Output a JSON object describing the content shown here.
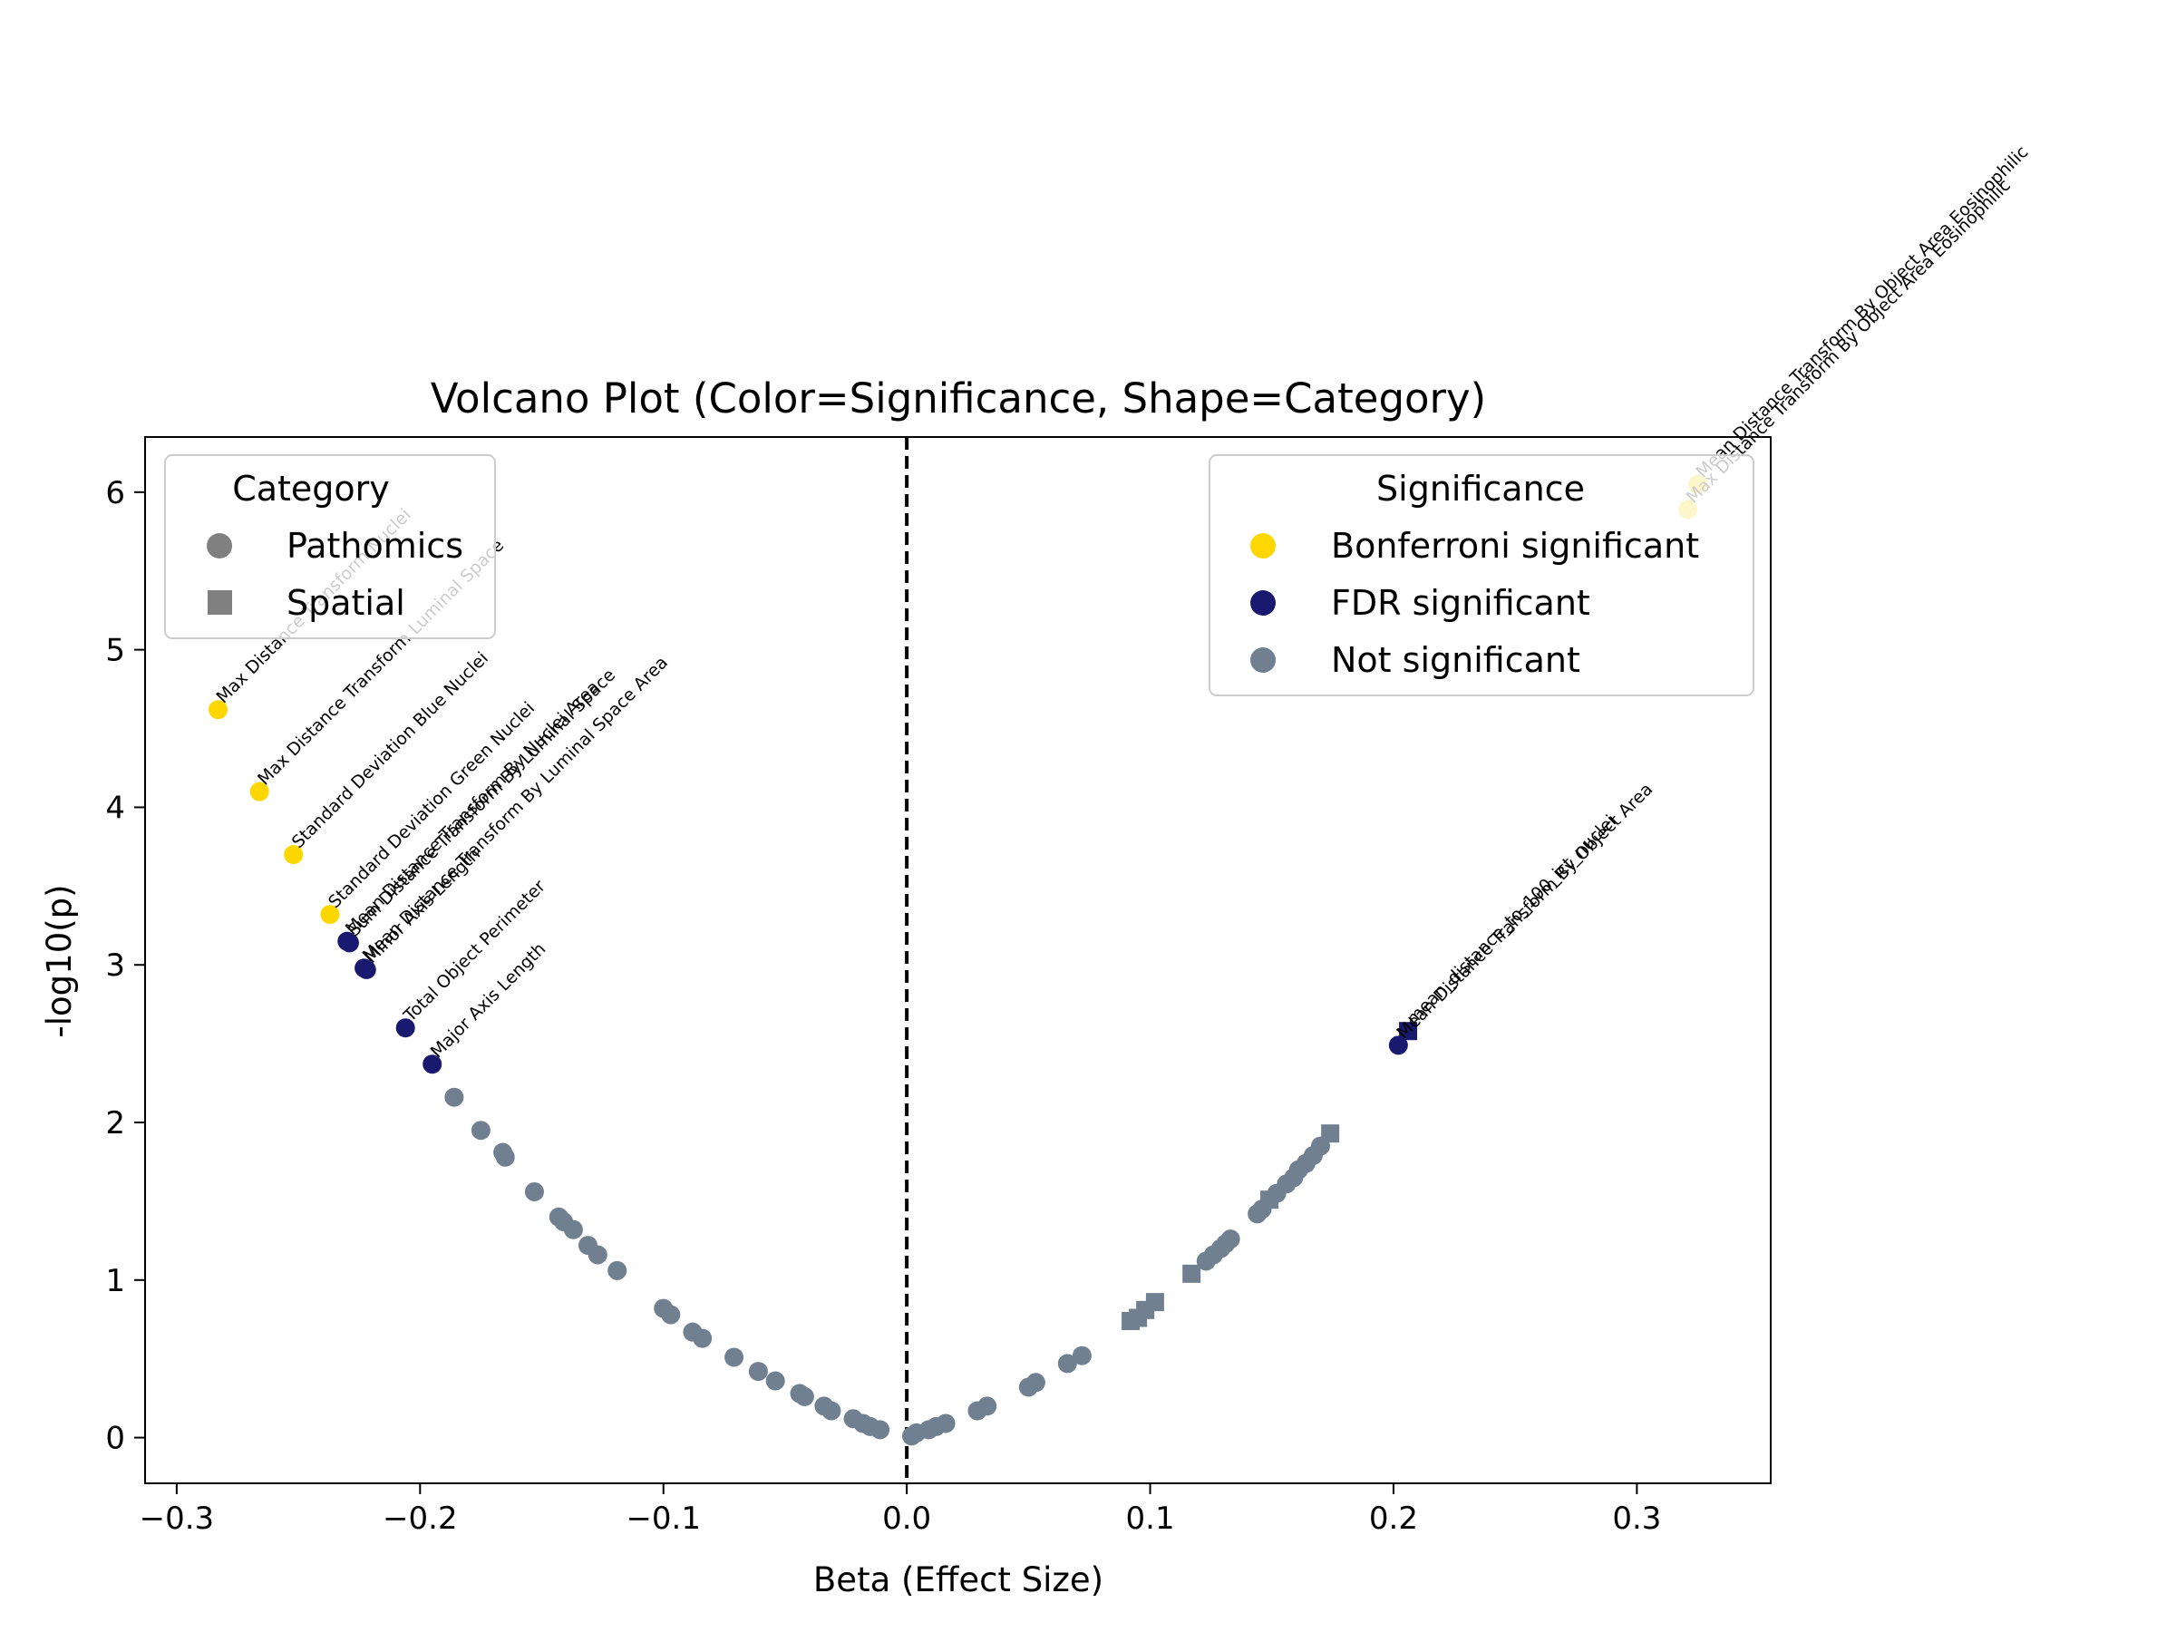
{
  "chart_data": {
    "type": "scatter",
    "title": "Volcano Plot (Color=Significance, Shape=Category)",
    "xlabel": "Beta (Effect Size)",
    "ylabel": "-log10(p)",
    "xlim": [
      -0.313,
      0.355
    ],
    "ylim": [
      -0.29,
      6.35
    ],
    "xticks": [
      -0.3,
      -0.2,
      -0.1,
      0.0,
      0.1,
      0.2,
      0.3
    ],
    "xtick_labels": [
      "−0.3",
      "−0.2",
      "−0.1",
      "0.0",
      "0.1",
      "0.2",
      "0.3"
    ],
    "yticks": [
      0,
      1,
      2,
      3,
      4,
      5,
      6
    ],
    "ytick_labels": [
      "0",
      "1",
      "2",
      "3",
      "4",
      "5",
      "6"
    ],
    "reference_line": {
      "x": 0,
      "style": "dashed",
      "color": "#000000"
    },
    "grid": false,
    "colors": {
      "Bonferroni significant": "#FFD700",
      "FDR significant": "#191970",
      "Not significant": "#708090",
      "category_marker": "#808080"
    },
    "legend_category": {
      "title": "Category",
      "placement": "upper-left",
      "entries": [
        {
          "label": "Pathomics",
          "marker": "circle"
        },
        {
          "label": "Spatial",
          "marker": "square"
        }
      ]
    },
    "legend_significance": {
      "title": "Significance",
      "placement": "upper-right",
      "entries": [
        {
          "label": "Bonferroni significant",
          "color": "#FFD700"
        },
        {
          "label": "FDR significant",
          "color": "#191970"
        },
        {
          "label": "Not significant",
          "color": "#708090"
        }
      ]
    },
    "points": [
      {
        "x": -0.283,
        "y": 4.62,
        "sig": "Bonferroni significant",
        "shape": "circle",
        "label": "Max Distance Transform Nuclei"
      },
      {
        "x": -0.266,
        "y": 4.1,
        "sig": "Bonferroni significant",
        "shape": "circle",
        "label": "Max Distance Transform Luminal Space"
      },
      {
        "x": -0.252,
        "y": 3.7,
        "sig": "Bonferroni significant",
        "shape": "circle",
        "label": "Standard Deviation Blue Nuclei"
      },
      {
        "x": -0.237,
        "y": 3.32,
        "sig": "Bonferroni significant",
        "shape": "circle",
        "label": "Standard Deviation Green Nuclei"
      },
      {
        "x": -0.23,
        "y": 3.15,
        "sig": "FDR significant",
        "shape": "circle",
        "label": "Mean Distance Transform By Nuclei Area"
      },
      {
        "x": -0.229,
        "y": 3.14,
        "sig": "FDR significant",
        "shape": "circle",
        "label": "Sum Distance Transform By Luminal Space"
      },
      {
        "x": -0.223,
        "y": 2.98,
        "sig": "FDR significant",
        "shape": "circle",
        "label": "Mean Distance Transform By Luminal Space Area"
      },
      {
        "x": -0.222,
        "y": 2.97,
        "sig": "FDR significant",
        "shape": "circle",
        "label": "Minor Axis Length"
      },
      {
        "x": -0.206,
        "y": 2.6,
        "sig": "FDR significant",
        "shape": "circle",
        "label": "Total Object Perimeter"
      },
      {
        "x": -0.195,
        "y": 2.37,
        "sig": "FDR significant",
        "shape": "circle",
        "label": "Major Axis Length"
      },
      {
        "x": 0.206,
        "y": 2.58,
        "sig": "FDR significant",
        "shape": "square",
        "label": "mean_distance_to_100_ict_nuclei"
      },
      {
        "x": 0.202,
        "y": 2.49,
        "sig": "FDR significant",
        "shape": "circle",
        "label": "Mean Distance Transform By Object Area"
      },
      {
        "x": 0.325,
        "y": 6.05,
        "sig": "Bonferroni significant",
        "shape": "circle",
        "label": "Mean Distance Transform By Object Area Eosinophilic"
      },
      {
        "x": 0.321,
        "y": 5.89,
        "sig": "Bonferroni significant",
        "shape": "circle",
        "label": "Max Distance Transform By Object Area Eosinophilic"
      },
      {
        "x": -0.186,
        "y": 2.16,
        "sig": "Not significant",
        "shape": "circle"
      },
      {
        "x": -0.175,
        "y": 1.95,
        "sig": "Not significant",
        "shape": "circle"
      },
      {
        "x": -0.166,
        "y": 1.81,
        "sig": "Not significant",
        "shape": "circle"
      },
      {
        "x": -0.165,
        "y": 1.78,
        "sig": "Not significant",
        "shape": "circle"
      },
      {
        "x": -0.153,
        "y": 1.56,
        "sig": "Not significant",
        "shape": "circle"
      },
      {
        "x": -0.143,
        "y": 1.4,
        "sig": "Not significant",
        "shape": "circle"
      },
      {
        "x": -0.141,
        "y": 1.37,
        "sig": "Not significant",
        "shape": "circle"
      },
      {
        "x": -0.137,
        "y": 1.32,
        "sig": "Not significant",
        "shape": "circle"
      },
      {
        "x": -0.131,
        "y": 1.22,
        "sig": "Not significant",
        "shape": "circle"
      },
      {
        "x": -0.127,
        "y": 1.16,
        "sig": "Not significant",
        "shape": "circle"
      },
      {
        "x": -0.119,
        "y": 1.06,
        "sig": "Not significant",
        "shape": "circle"
      },
      {
        "x": -0.1,
        "y": 0.82,
        "sig": "Not significant",
        "shape": "circle"
      },
      {
        "x": -0.097,
        "y": 0.78,
        "sig": "Not significant",
        "shape": "circle"
      },
      {
        "x": -0.088,
        "y": 0.67,
        "sig": "Not significant",
        "shape": "circle"
      },
      {
        "x": -0.084,
        "y": 0.63,
        "sig": "Not significant",
        "shape": "circle"
      },
      {
        "x": -0.071,
        "y": 0.51,
        "sig": "Not significant",
        "shape": "circle"
      },
      {
        "x": -0.061,
        "y": 0.42,
        "sig": "Not significant",
        "shape": "circle"
      },
      {
        "x": -0.054,
        "y": 0.36,
        "sig": "Not significant",
        "shape": "circle"
      },
      {
        "x": -0.044,
        "y": 0.28,
        "sig": "Not significant",
        "shape": "circle"
      },
      {
        "x": -0.042,
        "y": 0.26,
        "sig": "Not significant",
        "shape": "circle"
      },
      {
        "x": -0.034,
        "y": 0.2,
        "sig": "Not significant",
        "shape": "circle"
      },
      {
        "x": -0.031,
        "y": 0.17,
        "sig": "Not significant",
        "shape": "circle"
      },
      {
        "x": -0.022,
        "y": 0.12,
        "sig": "Not significant",
        "shape": "circle"
      },
      {
        "x": -0.018,
        "y": 0.09,
        "sig": "Not significant",
        "shape": "circle"
      },
      {
        "x": -0.015,
        "y": 0.07,
        "sig": "Not significant",
        "shape": "circle"
      },
      {
        "x": -0.011,
        "y": 0.05,
        "sig": "Not significant",
        "shape": "circle"
      },
      {
        "x": 0.002,
        "y": 0.01,
        "sig": "Not significant",
        "shape": "circle"
      },
      {
        "x": 0.004,
        "y": 0.03,
        "sig": "Not significant",
        "shape": "circle"
      },
      {
        "x": 0.009,
        "y": 0.05,
        "sig": "Not significant",
        "shape": "circle"
      },
      {
        "x": 0.012,
        "y": 0.07,
        "sig": "Not significant",
        "shape": "circle"
      },
      {
        "x": 0.016,
        "y": 0.09,
        "sig": "Not significant",
        "shape": "circle"
      },
      {
        "x": 0.029,
        "y": 0.17,
        "sig": "Not significant",
        "shape": "circle"
      },
      {
        "x": 0.033,
        "y": 0.2,
        "sig": "Not significant",
        "shape": "circle"
      },
      {
        "x": 0.05,
        "y": 0.32,
        "sig": "Not significant",
        "shape": "circle"
      },
      {
        "x": 0.053,
        "y": 0.35,
        "sig": "Not significant",
        "shape": "circle"
      },
      {
        "x": 0.066,
        "y": 0.47,
        "sig": "Not significant",
        "shape": "circle"
      },
      {
        "x": 0.072,
        "y": 0.52,
        "sig": "Not significant",
        "shape": "circle"
      },
      {
        "x": 0.092,
        "y": 0.74,
        "sig": "Not significant",
        "shape": "square"
      },
      {
        "x": 0.095,
        "y": 0.76,
        "sig": "Not significant",
        "shape": "square"
      },
      {
        "x": 0.098,
        "y": 0.81,
        "sig": "Not significant",
        "shape": "square"
      },
      {
        "x": 0.102,
        "y": 0.86,
        "sig": "Not significant",
        "shape": "square"
      },
      {
        "x": 0.117,
        "y": 1.04,
        "sig": "Not significant",
        "shape": "square"
      },
      {
        "x": 0.123,
        "y": 1.12,
        "sig": "Not significant",
        "shape": "circle"
      },
      {
        "x": 0.126,
        "y": 1.16,
        "sig": "Not significant",
        "shape": "circle"
      },
      {
        "x": 0.129,
        "y": 1.2,
        "sig": "Not significant",
        "shape": "circle"
      },
      {
        "x": 0.131,
        "y": 1.23,
        "sig": "Not significant",
        "shape": "circle"
      },
      {
        "x": 0.133,
        "y": 1.26,
        "sig": "Not significant",
        "shape": "circle"
      },
      {
        "x": 0.144,
        "y": 1.42,
        "sig": "Not significant",
        "shape": "circle"
      },
      {
        "x": 0.146,
        "y": 1.45,
        "sig": "Not significant",
        "shape": "circle"
      },
      {
        "x": 0.149,
        "y": 1.51,
        "sig": "Not significant",
        "shape": "square"
      },
      {
        "x": 0.152,
        "y": 1.55,
        "sig": "Not significant",
        "shape": "circle"
      },
      {
        "x": 0.156,
        "y": 1.61,
        "sig": "Not significant",
        "shape": "circle"
      },
      {
        "x": 0.159,
        "y": 1.65,
        "sig": "Not significant",
        "shape": "circle"
      },
      {
        "x": 0.161,
        "y": 1.7,
        "sig": "Not significant",
        "shape": "circle"
      },
      {
        "x": 0.164,
        "y": 1.74,
        "sig": "Not significant",
        "shape": "circle"
      },
      {
        "x": 0.167,
        "y": 1.79,
        "sig": "Not significant",
        "shape": "circle"
      },
      {
        "x": 0.17,
        "y": 1.85,
        "sig": "Not significant",
        "shape": "circle"
      },
      {
        "x": 0.174,
        "y": 1.93,
        "sig": "Not significant",
        "shape": "square"
      }
    ]
  }
}
